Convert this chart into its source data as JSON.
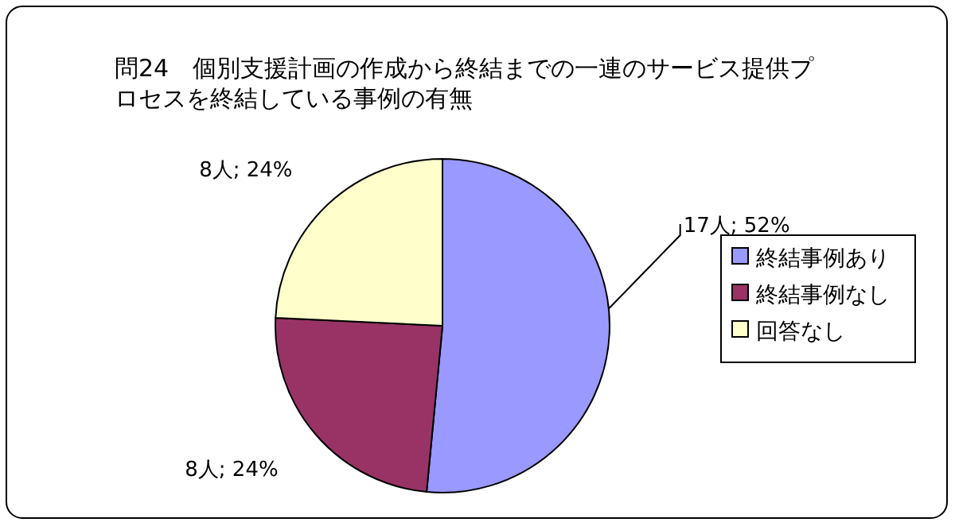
{
  "chart_data": {
    "type": "pie",
    "title": "問24　個別支援計画の作成から終結までの一連のサービス提供プロセスを終結している事例の有無",
    "categories": [
      "終結事例あり",
      "終結事例なし",
      "回答なし"
    ],
    "values": [
      17,
      8,
      8
    ],
    "value_labels": [
      "17人; 52%",
      "8人; 24%",
      "8人; 24%"
    ],
    "colors": [
      "#9999ff",
      "#993366",
      "#ffffcc"
    ],
    "legend": "right"
  }
}
